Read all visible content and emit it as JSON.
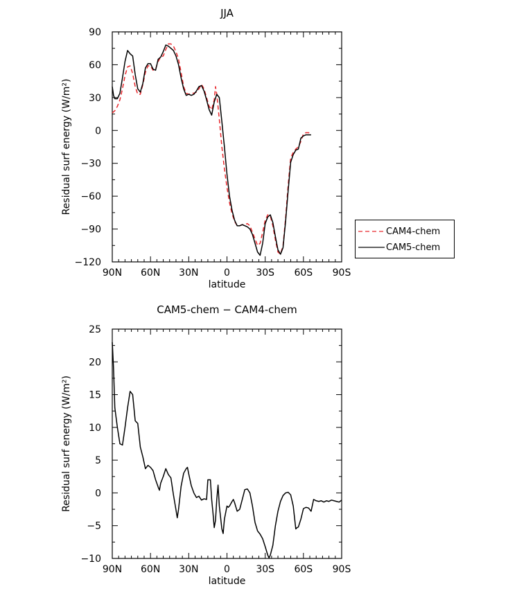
{
  "chart_data": [
    {
      "type": "line",
      "title": "JJA",
      "xlabel": "latitude",
      "ylabel": "Residual surf energy (W/m²)",
      "xlim": [
        90,
        -90
      ],
      "ylim": [
        -120,
        90
      ],
      "xticks": [
        {
          "value": 90,
          "label": "90N"
        },
        {
          "value": 60,
          "label": "60N"
        },
        {
          "value": 30,
          "label": "30N"
        },
        {
          "value": 0,
          "label": "0"
        },
        {
          "value": -30,
          "label": "30S"
        },
        {
          "value": -60,
          "label": "60S"
        },
        {
          "value": -90,
          "label": "90S"
        }
      ],
      "yticks": [
        90,
        60,
        30,
        0,
        -30,
        -60,
        -90,
        -120
      ],
      "series": [
        {
          "name": "CAM4-chem",
          "color": "#e8262b",
          "dash": true,
          "points": [
            [
              90,
              16
            ],
            [
              88,
              18
            ],
            [
              86,
              22
            ],
            [
              84,
              28
            ],
            [
              82,
              38
            ],
            [
              80,
              50
            ],
            [
              78,
              58
            ],
            [
              76,
              59
            ],
            [
              74,
              52
            ],
            [
              72,
              40
            ],
            [
              70,
              33
            ],
            [
              68,
              33
            ],
            [
              66,
              42
            ],
            [
              64,
              53
            ],
            [
              62,
              59
            ],
            [
              60,
              59
            ],
            [
              58,
              55
            ],
            [
              56,
              56
            ],
            [
              54,
              63
            ],
            [
              52,
              67
            ],
            [
              50,
              68
            ],
            [
              48,
              74
            ],
            [
              46,
              79
            ],
            [
              44,
              79
            ],
            [
              42,
              77
            ],
            [
              40,
              72
            ],
            [
              38,
              65
            ],
            [
              36,
              53
            ],
            [
              34,
              40
            ],
            [
              32,
              34
            ],
            [
              30,
              33
            ],
            [
              28,
              34
            ],
            [
              26,
              34
            ],
            [
              24,
              35
            ],
            [
              22,
              38
            ],
            [
              20,
              42
            ],
            [
              18,
              38
            ],
            [
              16,
              30
            ],
            [
              14,
              22
            ],
            [
              12,
              19
            ],
            [
              10,
              28
            ],
            [
              9,
              40
            ],
            [
              8,
              33
            ],
            [
              6,
              10
            ],
            [
              4,
              -15
            ],
            [
              2,
              -35
            ],
            [
              0,
              -52
            ],
            [
              -2,
              -66
            ],
            [
              -4,
              -76
            ],
            [
              -6,
              -83
            ],
            [
              -8,
              -87
            ],
            [
              -10,
              -87
            ],
            [
              -12,
              -86
            ],
            [
              -14,
              -86
            ],
            [
              -16,
              -85
            ],
            [
              -18,
              -87
            ],
            [
              -20,
              -93
            ],
            [
              -22,
              -99
            ],
            [
              -24,
              -105
            ],
            [
              -26,
              -103
            ],
            [
              -28,
              -93
            ],
            [
              -30,
              -82
            ],
            [
              -32,
              -77
            ],
            [
              -34,
              -78
            ],
            [
              -36,
              -87
            ],
            [
              -38,
              -100
            ],
            [
              -40,
              -111
            ],
            [
              -42,
              -113
            ],
            [
              -44,
              -105
            ],
            [
              -46,
              -80
            ],
            [
              -48,
              -50
            ],
            [
              -50,
              -25
            ],
            [
              -52,
              -20
            ],
            [
              -54,
              -17
            ],
            [
              -56,
              -15
            ],
            [
              -58,
              -10
            ],
            [
              -60,
              -3
            ],
            [
              -62,
              -2
            ],
            [
              -64,
              -2
            ],
            [
              -66,
              -3
            ]
          ]
        },
        {
          "name": "CAM5-chem",
          "color": "#000000",
          "dash": false,
          "points": [
            [
              90,
              40
            ],
            [
              89,
              32
            ],
            [
              88,
              29
            ],
            [
              86,
              29
            ],
            [
              84,
              34
            ],
            [
              82,
              48
            ],
            [
              80,
              63
            ],
            [
              78,
              73
            ],
            [
              76,
              70
            ],
            [
              74,
              68
            ],
            [
              72,
              51
            ],
            [
              70,
              38
            ],
            [
              68,
              35
            ],
            [
              66,
              43
            ],
            [
              64,
              57
            ],
            [
              62,
              61
            ],
            [
              60,
              61
            ],
            [
              58,
              56
            ],
            [
              56,
              55
            ],
            [
              54,
              65
            ],
            [
              52,
              67
            ],
            [
              50,
              72
            ],
            [
              48,
              78
            ],
            [
              46,
              77
            ],
            [
              44,
              75
            ],
            [
              42,
              73
            ],
            [
              40,
              68
            ],
            [
              38,
              60
            ],
            [
              36,
              48
            ],
            [
              34,
              38
            ],
            [
              32,
              32
            ],
            [
              30,
              33
            ],
            [
              28,
              32
            ],
            [
              26,
              33
            ],
            [
              24,
              36
            ],
            [
              22,
              40
            ],
            [
              20,
              41
            ],
            [
              18,
              36
            ],
            [
              16,
              28
            ],
            [
              14,
              19
            ],
            [
              12,
              14
            ],
            [
              10,
              26
            ],
            [
              8,
              33
            ],
            [
              6,
              30
            ],
            [
              4,
              8
            ],
            [
              2,
              -15
            ],
            [
              0,
              -40
            ],
            [
              -2,
              -60
            ],
            [
              -4,
              -73
            ],
            [
              -6,
              -82
            ],
            [
              -8,
              -87
            ],
            [
              -10,
              -87
            ],
            [
              -12,
              -86
            ],
            [
              -14,
              -87
            ],
            [
              -16,
              -88
            ],
            [
              -18,
              -90
            ],
            [
              -20,
              -95
            ],
            [
              -22,
              -103
            ],
            [
              -24,
              -111
            ],
            [
              -26,
              -114
            ],
            [
              -28,
              -103
            ],
            [
              -30,
              -85
            ],
            [
              -32,
              -79
            ],
            [
              -34,
              -77
            ],
            [
              -36,
              -84
            ],
            [
              -38,
              -97
            ],
            [
              -40,
              -109
            ],
            [
              -42,
              -113
            ],
            [
              -44,
              -107
            ],
            [
              -46,
              -83
            ],
            [
              -48,
              -55
            ],
            [
              -50,
              -29
            ],
            [
              -52,
              -22
            ],
            [
              -54,
              -18
            ],
            [
              -56,
              -17
            ],
            [
              -58,
              -7
            ],
            [
              -60,
              -5
            ],
            [
              -62,
              -4
            ],
            [
              -64,
              -4
            ],
            [
              -66,
              -4
            ]
          ]
        }
      ],
      "legend": {
        "position": "right"
      }
    },
    {
      "type": "line",
      "title": "CAM5-chem − CAM4-chem",
      "xlabel": "latitude",
      "ylabel": "Residual surf energy (W/m²)",
      "xlim": [
        90,
        -90
      ],
      "ylim": [
        -10,
        25
      ],
      "xticks": [
        {
          "value": 90,
          "label": "90N"
        },
        {
          "value": 60,
          "label": "60N"
        },
        {
          "value": 30,
          "label": "30N"
        },
        {
          "value": 0,
          "label": "0"
        },
        {
          "value": -30,
          "label": "30S"
        },
        {
          "value": -60,
          "label": "60S"
        },
        {
          "value": -90,
          "label": "90S"
        }
      ],
      "yticks": [
        25,
        20,
        15,
        10,
        5,
        0,
        -5,
        -10
      ],
      "series": [
        {
          "name": "CAM5-chem − CAM4-chem",
          "color": "#000000",
          "dash": false,
          "points": [
            [
              90,
              23
            ],
            [
              89,
              19
            ],
            [
              88,
              13
            ],
            [
              86,
              10
            ],
            [
              84,
              7.5
            ],
            [
              82,
              7.3
            ],
            [
              80,
              10
            ],
            [
              78,
              13
            ],
            [
              76,
              15.5
            ],
            [
              74,
              15
            ],
            [
              72,
              11
            ],
            [
              70,
              10.6
            ],
            [
              68,
              7
            ],
            [
              66,
              5.5
            ],
            [
              64,
              3.7
            ],
            [
              62,
              4.2
            ],
            [
              60,
              3.9
            ],
            [
              58,
              3.4
            ],
            [
              56,
              2
            ],
            [
              54,
              0.9
            ],
            [
              53,
              0.4
            ],
            [
              52,
              1.5
            ],
            [
              50,
              2.5
            ],
            [
              48,
              3.7
            ],
            [
              46,
              2.8
            ],
            [
              44,
              2.3
            ],
            [
              42,
              -0.3
            ],
            [
              40,
              -2.6
            ],
            [
              39,
              -3.8
            ],
            [
              38,
              -2.5
            ],
            [
              36,
              1
            ],
            [
              34,
              3
            ],
            [
              32,
              3.7
            ],
            [
              31,
              3.9
            ],
            [
              30,
              2.9
            ],
            [
              28,
              1.1
            ],
            [
              26,
              0
            ],
            [
              24,
              -0.7
            ],
            [
              22,
              -0.5
            ],
            [
              20,
              -1.1
            ],
            [
              18,
              -0.9
            ],
            [
              16,
              -1
            ],
            [
              15,
              2
            ],
            [
              14,
              2
            ],
            [
              13,
              2
            ],
            [
              12,
              -1
            ],
            [
              11,
              -3
            ],
            [
              10,
              -5.3
            ],
            [
              9,
              -4.2
            ],
            [
              8,
              -1
            ],
            [
              7,
              1.2
            ],
            [
              6,
              -2
            ],
            [
              4,
              -5.5
            ],
            [
              3,
              -6.2
            ],
            [
              2,
              -4
            ],
            [
              0,
              -2
            ],
            [
              -1,
              -2.2
            ],
            [
              -2,
              -2
            ],
            [
              -4,
              -1.3
            ],
            [
              -5,
              -1
            ],
            [
              -6,
              -1.5
            ],
            [
              -8,
              -2.8
            ],
            [
              -10,
              -2.5
            ],
            [
              -12,
              -1
            ],
            [
              -14,
              0.5
            ],
            [
              -16,
              0.6
            ],
            [
              -18,
              0
            ],
            [
              -20,
              -2
            ],
            [
              -22,
              -4.5
            ],
            [
              -24,
              -5.8
            ],
            [
              -26,
              -6.3
            ],
            [
              -28,
              -7
            ],
            [
              -30,
              -8.2
            ],
            [
              -32,
              -9.5
            ],
            [
              -33,
              -9.9
            ],
            [
              -34,
              -9.5
            ],
            [
              -36,
              -8
            ],
            [
              -38,
              -5
            ],
            [
              -40,
              -2.8
            ],
            [
              -42,
              -1.3
            ],
            [
              -44,
              -0.4
            ],
            [
              -46,
              0
            ],
            [
              -48,
              0.1
            ],
            [
              -50,
              -0.3
            ],
            [
              -52,
              -2
            ],
            [
              -54,
              -5.5
            ],
            [
              -55,
              -5.3
            ],
            [
              -56,
              -5.2
            ],
            [
              -58,
              -4
            ],
            [
              -60,
              -2.4
            ],
            [
              -62,
              -2.2
            ],
            [
              -64,
              -2.3
            ],
            [
              -66,
              -2.8
            ],
            [
              -68,
              -1
            ],
            [
              -70,
              -1.2
            ],
            [
              -72,
              -1.3
            ],
            [
              -74,
              -1.2
            ],
            [
              -76,
              -1.4
            ],
            [
              -78,
              -1.2
            ],
            [
              -80,
              -1.3
            ],
            [
              -82,
              -1.1
            ],
            [
              -84,
              -1.2
            ],
            [
              -86,
              -1.3
            ],
            [
              -88,
              -1.4
            ],
            [
              -90,
              -1.1
            ]
          ]
        }
      ]
    }
  ],
  "legend": {
    "items": [
      {
        "label": "CAM4-chem"
      },
      {
        "label": "CAM5-chem"
      }
    ]
  }
}
